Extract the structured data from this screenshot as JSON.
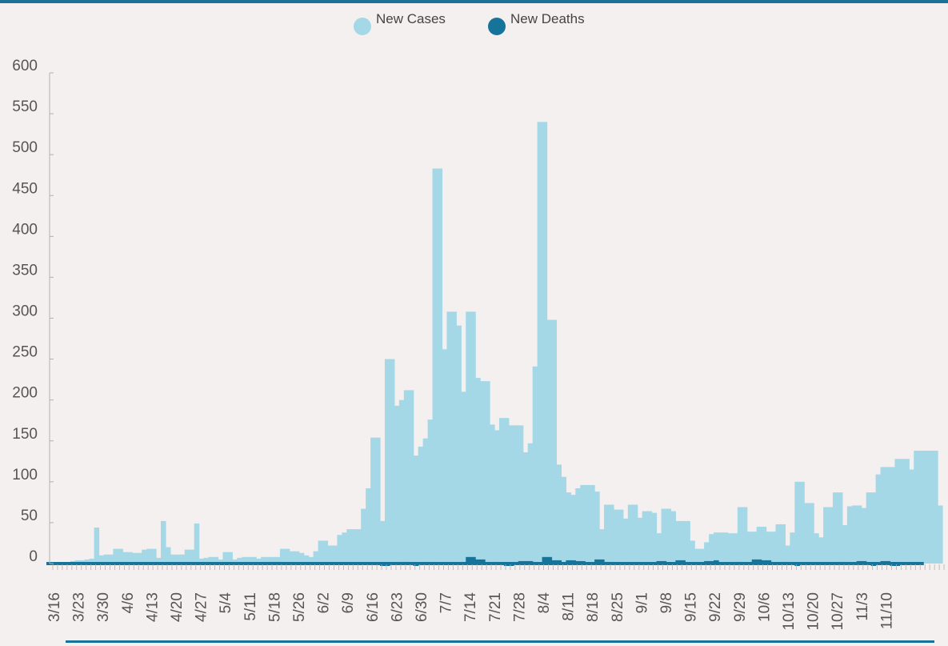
{
  "colors": {
    "cases": "#a4d8e7",
    "deaths": "#16739a",
    "rule": "#1a7199",
    "axis": "#b0b0b0",
    "text": "#555555",
    "background": "#f4f0ef"
  },
  "chart_data": {
    "type": "bar",
    "title": "",
    "xlabel": "",
    "ylabel": "",
    "ylim": [
      0,
      600
    ],
    "yticks": [
      0,
      50,
      100,
      150,
      200,
      250,
      300,
      350,
      400,
      450,
      500,
      550,
      600
    ],
    "grid": false,
    "legend_position": "top-center",
    "x_tick_labels": [
      "3/16",
      "3/23",
      "3/30",
      "4/6",
      "4/13",
      "4/20",
      "4/27",
      "5/4",
      "5/11",
      "5/18",
      "5/26",
      "6/2",
      "6/9",
      "6/16",
      "6/23",
      "6/30",
      "7/7",
      "7/14",
      "7/21",
      "7/28",
      "8/4",
      "8/11",
      "8/18",
      "8/25",
      "9/1",
      "9/8",
      "9/15",
      "9/22",
      "9/29",
      "10/6",
      "10/13",
      "10/20",
      "10/27",
      "11/3",
      "11/10"
    ],
    "x_start": "3/16",
    "series": [
      {
        "name": "New Cases",
        "values": [
          0,
          0,
          0,
          0,
          0,
          3,
          4,
          4,
          5,
          6,
          44,
          10,
          11,
          11,
          18,
          18,
          14,
          14,
          13,
          13,
          17,
          18,
          18,
          7,
          52,
          20,
          11,
          11,
          11,
          17,
          17,
          49,
          6,
          7,
          8,
          8,
          5,
          14,
          14,
          5,
          7,
          8,
          8,
          8,
          6,
          8,
          8,
          8,
          8,
          18,
          18,
          15,
          15,
          13,
          10,
          8,
          15,
          28,
          28,
          22,
          22,
          35,
          38,
          42,
          42,
          42,
          67,
          92,
          154,
          154,
          52,
          250,
          250,
          193,
          200,
          212,
          212,
          132,
          143,
          153,
          176,
          483,
          483,
          262,
          308,
          308,
          291,
          210,
          308,
          308,
          227,
          223,
          223,
          170,
          163,
          178,
          178,
          169,
          169,
          169,
          136,
          147,
          241,
          540,
          540,
          298,
          298,
          121,
          106,
          87,
          84,
          92,
          96,
          96,
          96,
          88,
          42,
          72,
          72,
          66,
          66,
          55,
          72,
          72,
          56,
          64,
          64,
          62,
          37,
          67,
          67,
          64,
          52,
          52,
          52,
          28,
          18,
          18,
          26,
          36,
          38,
          38,
          38,
          37,
          37,
          69,
          69,
          39,
          39,
          45,
          45,
          39,
          39,
          48,
          48,
          22,
          38,
          100,
          100,
          74,
          74,
          37,
          32,
          69,
          69,
          87,
          87,
          47,
          70,
          71,
          71,
          68,
          87,
          87,
          109,
          118,
          118,
          118,
          128,
          128,
          128,
          115,
          138,
          138,
          138,
          138,
          138,
          71
        ]
      },
      {
        "name": "New Deaths",
        "values": [
          0,
          0,
          0,
          0,
          0,
          0,
          0,
          0,
          0,
          0,
          0,
          0,
          0,
          0,
          0,
          0,
          0,
          0,
          0,
          0,
          0,
          0,
          0,
          0,
          0,
          0,
          0,
          0,
          0,
          0,
          0,
          0,
          0,
          0,
          0,
          0,
          0,
          0,
          0,
          0,
          1,
          1,
          1,
          1,
          0,
          1,
          2,
          2,
          2,
          0,
          0,
          0,
          0,
          0,
          0,
          0,
          0,
          0,
          0,
          0,
          0,
          0,
          0,
          0,
          0,
          0,
          0,
          0,
          0,
          0,
          -1,
          -1,
          0,
          0,
          2,
          2,
          0,
          -1,
          0,
          0,
          0,
          0,
          0,
          0,
          0,
          0,
          0,
          2,
          8,
          8,
          5,
          5,
          0,
          2,
          2,
          0,
          -1,
          -1,
          0,
          3,
          3,
          3,
          0,
          0,
          8,
          8,
          4,
          4,
          0,
          4,
          4,
          3,
          3,
          0,
          0,
          5,
          5,
          2,
          2,
          0,
          0,
          0,
          0,
          1,
          1,
          0,
          0,
          0,
          3,
          3,
          0,
          0,
          4,
          4,
          0,
          0,
          0,
          0,
          3,
          3,
          4,
          0,
          0,
          0,
          2,
          2,
          0,
          0,
          5,
          5,
          4,
          4,
          0,
          0,
          2,
          2,
          0,
          -1,
          0,
          0,
          0,
          0,
          0,
          0,
          0,
          0,
          2,
          2,
          0,
          0,
          3,
          3,
          0,
          -1,
          0,
          3,
          3,
          -1,
          -1,
          0,
          0,
          0,
          0,
          0
        ]
      }
    ]
  }
}
